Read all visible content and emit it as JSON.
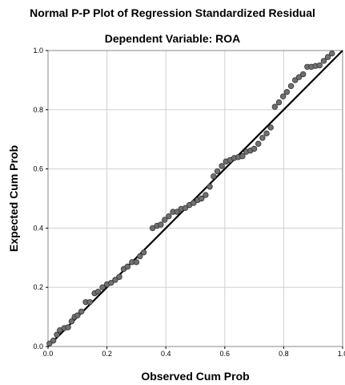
{
  "chart_data": {
    "type": "scatter",
    "title": "Normal P-P Plot of Regression Standardized Residual",
    "subtitle": "Dependent Variable: ROA",
    "xlabel": "Observed Cum Prob",
    "ylabel": "Expected Cum Prob",
    "xlim": [
      0.0,
      1.0
    ],
    "ylim": [
      0.0,
      1.0
    ],
    "xticks": [
      "0.0",
      "0.2",
      "0.4",
      "0.6",
      "0.8",
      "1.0"
    ],
    "yticks": [
      "0.0",
      "0.2",
      "0.4",
      "0.6",
      "0.8",
      "1.0"
    ],
    "grid": true,
    "reference_line": {
      "from": [
        0,
        0
      ],
      "to": [
        1,
        1
      ]
    },
    "colors": {
      "points_fill": "#707070",
      "points_stroke": "#333333",
      "line": "#000000",
      "grid": "#d0d0d0",
      "frame": "#888888"
    },
    "points": [
      [
        0.005,
        0.01
      ],
      [
        0.018,
        0.02
      ],
      [
        0.03,
        0.04
      ],
      [
        0.04,
        0.055
      ],
      [
        0.055,
        0.062
      ],
      [
        0.068,
        0.065
      ],
      [
        0.08,
        0.085
      ],
      [
        0.09,
        0.1
      ],
      [
        0.1,
        0.105
      ],
      [
        0.113,
        0.118
      ],
      [
        0.128,
        0.15
      ],
      [
        0.142,
        0.15
      ],
      [
        0.158,
        0.18
      ],
      [
        0.17,
        0.185
      ],
      [
        0.185,
        0.2
      ],
      [
        0.2,
        0.21
      ],
      [
        0.214,
        0.215
      ],
      [
        0.228,
        0.225
      ],
      [
        0.242,
        0.235
      ],
      [
        0.257,
        0.262
      ],
      [
        0.27,
        0.27
      ],
      [
        0.285,
        0.285
      ],
      [
        0.3,
        0.285
      ],
      [
        0.312,
        0.305
      ],
      [
        0.325,
        0.318
      ],
      [
        0.355,
        0.4
      ],
      [
        0.37,
        0.408
      ],
      [
        0.383,
        0.412
      ],
      [
        0.396,
        0.428
      ],
      [
        0.41,
        0.44
      ],
      [
        0.424,
        0.455
      ],
      [
        0.438,
        0.455
      ],
      [
        0.452,
        0.465
      ],
      [
        0.466,
        0.468
      ],
      [
        0.48,
        0.478
      ],
      [
        0.494,
        0.485
      ],
      [
        0.508,
        0.495
      ],
      [
        0.521,
        0.5
      ],
      [
        0.535,
        0.512
      ],
      [
        0.549,
        0.54
      ],
      [
        0.562,
        0.575
      ],
      [
        0.575,
        0.592
      ],
      [
        0.59,
        0.61
      ],
      [
        0.604,
        0.625
      ],
      [
        0.618,
        0.63
      ],
      [
        0.632,
        0.637
      ],
      [
        0.646,
        0.64
      ],
      [
        0.66,
        0.643
      ],
      [
        0.673,
        0.658
      ],
      [
        0.687,
        0.662
      ],
      [
        0.7,
        0.668
      ],
      [
        0.714,
        0.685
      ],
      [
        0.728,
        0.705
      ],
      [
        0.742,
        0.72
      ],
      [
        0.756,
        0.74
      ],
      [
        0.77,
        0.81
      ],
      [
        0.784,
        0.825
      ],
      [
        0.798,
        0.845
      ],
      [
        0.811,
        0.86
      ],
      [
        0.825,
        0.88
      ],
      [
        0.839,
        0.9
      ],
      [
        0.852,
        0.91
      ],
      [
        0.866,
        0.92
      ],
      [
        0.88,
        0.945
      ],
      [
        0.894,
        0.945
      ],
      [
        0.908,
        0.948
      ],
      [
        0.922,
        0.95
      ],
      [
        0.936,
        0.965
      ],
      [
        0.95,
        0.978
      ],
      [
        0.964,
        0.99
      ]
    ]
  }
}
